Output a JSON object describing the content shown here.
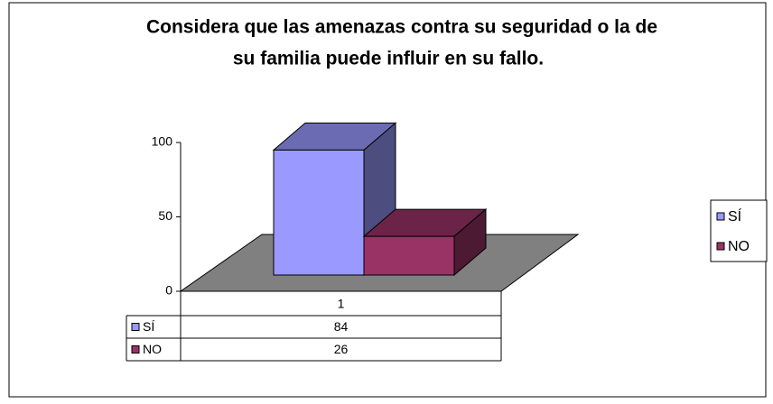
{
  "chart_data": {
    "type": "bar3d",
    "title": [
      "Considera que las amenazas contra su seguridad o la de",
      "su familia puede influir en su fallo."
    ],
    "categories": [
      "1"
    ],
    "series": [
      {
        "name": "SÍ",
        "color": "#9999ff",
        "values": [
          84
        ]
      },
      {
        "name": "NO",
        "color": "#993366",
        "values": [
          26
        ]
      }
    ],
    "ylim": [
      0,
      100
    ],
    "yticks": [
      0,
      50,
      100
    ],
    "legend": "right",
    "data_table": true
  }
}
